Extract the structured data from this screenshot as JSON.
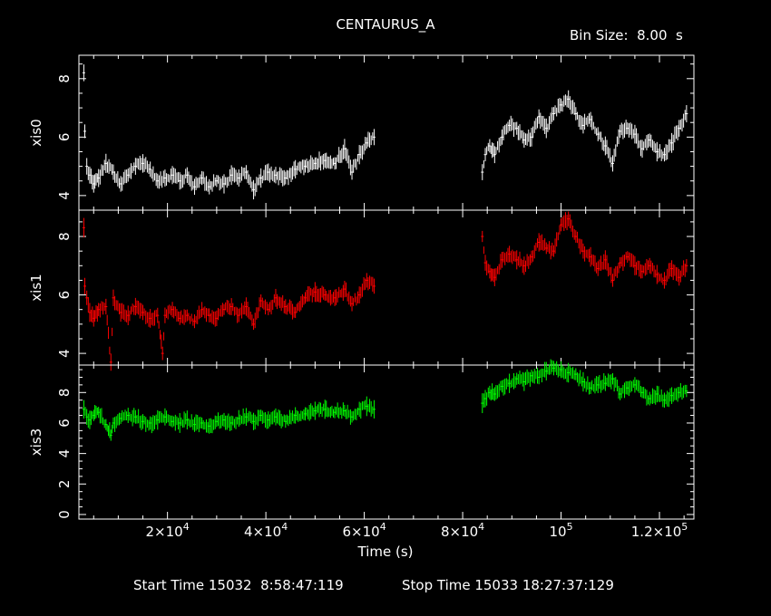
{
  "header": {
    "title": "CENTAURUS_A",
    "bin_size": "Bin Size:  8.00  s"
  },
  "footer": {
    "start_time": "Start Time 15032  8:58:47:119",
    "stop_time": "Stop Time 15033 18:27:37:129"
  },
  "colors": {
    "background": "#000000",
    "axes": "#ffffff",
    "xis0": "#ffffff",
    "xis1": "#ff0000",
    "xis3": "#00ff00"
  },
  "chart_data": {
    "type": "scatter",
    "title": "CENTAURUS_A",
    "xlabel": "Time (s)",
    "xlim": [
      2000,
      127000
    ],
    "x_ticks": [
      20000,
      40000,
      60000,
      80000,
      100000,
      120000
    ],
    "x_tick_labels": [
      {
        "mant": "2×10",
        "exp": "4"
      },
      {
        "mant": "4×10",
        "exp": "4"
      },
      {
        "mant": "6×10",
        "exp": "4"
      },
      {
        "mant": "8×10",
        "exp": "4"
      },
      {
        "mant": "10",
        "exp": "5"
      },
      {
        "mant": "1.2×10",
        "exp": "5"
      }
    ],
    "panels": [
      {
        "name": "xis0",
        "ylabel": "xis0",
        "ylim": [
          3.5,
          8.8
        ],
        "yticks": [
          4,
          6,
          8
        ],
        "ytick_labels": [
          "4",
          "6",
          "8"
        ],
        "color": "#ffffff",
        "points": [
          [
            3000,
            8.2
          ],
          [
            3200,
            6.2
          ],
          [
            3600,
            5.0
          ],
          [
            4200,
            4.7
          ],
          [
            5000,
            4.4
          ],
          [
            6000,
            4.6
          ],
          [
            7500,
            5.1
          ],
          [
            9000,
            4.8
          ],
          [
            10500,
            4.4
          ],
          [
            12000,
            4.7
          ],
          [
            13500,
            5.0
          ],
          [
            15000,
            5.1
          ],
          [
            16500,
            4.9
          ],
          [
            18000,
            4.5
          ],
          [
            19500,
            4.6
          ],
          [
            21000,
            4.7
          ],
          [
            22500,
            4.5
          ],
          [
            24000,
            4.7
          ],
          [
            25500,
            4.3
          ],
          [
            27000,
            4.6
          ],
          [
            28500,
            4.3
          ],
          [
            30000,
            4.5
          ],
          [
            31500,
            4.4
          ],
          [
            33000,
            4.7
          ],
          [
            34500,
            4.6
          ],
          [
            36000,
            4.8
          ],
          [
            37500,
            4.2
          ],
          [
            39000,
            4.6
          ],
          [
            40500,
            4.8
          ],
          [
            42000,
            4.7
          ],
          [
            44000,
            4.6
          ],
          [
            46000,
            4.9
          ],
          [
            48000,
            5.0
          ],
          [
            50000,
            5.1
          ],
          [
            52000,
            5.2
          ],
          [
            54000,
            5.1
          ],
          [
            56000,
            5.6
          ],
          [
            57500,
            4.8
          ],
          [
            59000,
            5.4
          ],
          [
            60500,
            5.8
          ],
          [
            62000,
            6.0
          ],
          [
            84000,
            4.8
          ],
          [
            84600,
            5.4
          ],
          [
            85500,
            5.7
          ],
          [
            86500,
            5.4
          ],
          [
            88000,
            6.0
          ],
          [
            89500,
            6.4
          ],
          [
            91000,
            6.3
          ],
          [
            92500,
            5.9
          ],
          [
            94000,
            6.0
          ],
          [
            95500,
            6.7
          ],
          [
            97000,
            6.3
          ],
          [
            98500,
            6.8
          ],
          [
            100000,
            7.1
          ],
          [
            101500,
            7.3
          ],
          [
            103000,
            6.8
          ],
          [
            104500,
            6.4
          ],
          [
            106000,
            6.6
          ],
          [
            107500,
            6.1
          ],
          [
            109000,
            5.7
          ],
          [
            110500,
            5.1
          ],
          [
            112000,
            6.2
          ],
          [
            113500,
            6.3
          ],
          [
            115000,
            6.1
          ],
          [
            116500,
            5.6
          ],
          [
            118000,
            5.9
          ],
          [
            119500,
            5.5
          ],
          [
            121000,
            5.4
          ],
          [
            122500,
            5.8
          ],
          [
            124000,
            6.3
          ],
          [
            125500,
            6.8
          ]
        ]
      },
      {
        "name": "xis1",
        "ylabel": "xis1",
        "ylim": [
          3.6,
          8.9
        ],
        "yticks": [
          4,
          6,
          8
        ],
        "ytick_labels": [
          "4",
          "6",
          "8"
        ],
        "color": "#ff0000",
        "points": [
          [
            3000,
            8.3
          ],
          [
            3200,
            6.3
          ],
          [
            3600,
            5.9
          ],
          [
            4200,
            5.4
          ],
          [
            5000,
            5.2
          ],
          [
            6000,
            5.5
          ],
          [
            7500,
            5.6
          ],
          [
            8500,
            3.7
          ],
          [
            9000,
            5.9
          ],
          [
            10500,
            5.4
          ],
          [
            12000,
            5.3
          ],
          [
            13500,
            5.6
          ],
          [
            15000,
            5.4
          ],
          [
            16500,
            5.2
          ],
          [
            18000,
            5.3
          ],
          [
            19000,
            4.0
          ],
          [
            19500,
            5.3
          ],
          [
            21000,
            5.5
          ],
          [
            22500,
            5.2
          ],
          [
            24000,
            5.3
          ],
          [
            25500,
            5.1
          ],
          [
            27000,
            5.5
          ],
          [
            28500,
            5.3
          ],
          [
            30000,
            5.2
          ],
          [
            31500,
            5.5
          ],
          [
            33000,
            5.6
          ],
          [
            34500,
            5.3
          ],
          [
            36000,
            5.6
          ],
          [
            37500,
            5.0
          ],
          [
            39000,
            5.8
          ],
          [
            40500,
            5.5
          ],
          [
            42000,
            5.9
          ],
          [
            44000,
            5.6
          ],
          [
            46000,
            5.4
          ],
          [
            48000,
            5.9
          ],
          [
            50000,
            6.1
          ],
          [
            52000,
            6.0
          ],
          [
            54000,
            5.9
          ],
          [
            56000,
            6.2
          ],
          [
            57500,
            5.7
          ],
          [
            59000,
            6.0
          ],
          [
            60500,
            6.5
          ],
          [
            62000,
            6.3
          ],
          [
            84000,
            8.0
          ],
          [
            84600,
            7.1
          ],
          [
            85500,
            6.8
          ],
          [
            86500,
            6.6
          ],
          [
            88000,
            7.2
          ],
          [
            89500,
            7.4
          ],
          [
            91000,
            7.2
          ],
          [
            92500,
            7.0
          ],
          [
            94000,
            7.3
          ],
          [
            95500,
            7.8
          ],
          [
            97000,
            7.6
          ],
          [
            98500,
            7.5
          ],
          [
            100000,
            8.4
          ],
          [
            101500,
            8.6
          ],
          [
            103000,
            8.0
          ],
          [
            104500,
            7.5
          ],
          [
            106000,
            7.3
          ],
          [
            107500,
            6.9
          ],
          [
            109000,
            7.2
          ],
          [
            110500,
            6.5
          ],
          [
            112000,
            7.1
          ],
          [
            113500,
            7.3
          ],
          [
            115000,
            7.0
          ],
          [
            116500,
            6.8
          ],
          [
            118000,
            7.0
          ],
          [
            119500,
            6.7
          ],
          [
            121000,
            6.5
          ],
          [
            122500,
            6.9
          ],
          [
            124000,
            6.6
          ],
          [
            125500,
            7.0
          ]
        ]
      },
      {
        "name": "xis3",
        "ylabel": "xis3",
        "ylim": [
          -0.3,
          9.8
        ],
        "yticks": [
          0,
          2,
          4,
          6,
          8
        ],
        "ytick_labels": [
          "0",
          "2",
          "4",
          "6",
          "8"
        ],
        "color": "#00ff00",
        "points": [
          [
            3000,
            6.9
          ],
          [
            3600,
            6.4
          ],
          [
            4200,
            6.2
          ],
          [
            5000,
            6.5
          ],
          [
            6000,
            6.7
          ],
          [
            7500,
            5.9
          ],
          [
            8500,
            5.2
          ],
          [
            9000,
            6.0
          ],
          [
            10500,
            6.3
          ],
          [
            12000,
            6.5
          ],
          [
            13500,
            6.4
          ],
          [
            15000,
            6.1
          ],
          [
            16500,
            6.0
          ],
          [
            18000,
            6.2
          ],
          [
            19500,
            6.4
          ],
          [
            21000,
            6.1
          ],
          [
            22500,
            6.0
          ],
          [
            24000,
            6.2
          ],
          [
            25500,
            5.9
          ],
          [
            27000,
            6.0
          ],
          [
            28500,
            5.8
          ],
          [
            30000,
            6.1
          ],
          [
            31500,
            6.2
          ],
          [
            33000,
            6.0
          ],
          [
            34500,
            6.3
          ],
          [
            36000,
            6.4
          ],
          [
            37500,
            6.1
          ],
          [
            39000,
            6.5
          ],
          [
            40500,
            6.2
          ],
          [
            42000,
            6.4
          ],
          [
            44000,
            6.1
          ],
          [
            46000,
            6.5
          ],
          [
            48000,
            6.6
          ],
          [
            50000,
            6.8
          ],
          [
            52000,
            6.9
          ],
          [
            54000,
            6.7
          ],
          [
            56000,
            6.8
          ],
          [
            57500,
            6.4
          ],
          [
            59000,
            6.9
          ],
          [
            60500,
            7.1
          ],
          [
            62000,
            6.9
          ],
          [
            84000,
            7.3
          ],
          [
            84600,
            7.6
          ],
          [
            85500,
            8.0
          ],
          [
            86500,
            7.9
          ],
          [
            88000,
            8.4
          ],
          [
            89500,
            8.6
          ],
          [
            91000,
            8.9
          ],
          [
            92500,
            8.7
          ],
          [
            94000,
            9.1
          ],
          [
            95500,
            9.0
          ],
          [
            97000,
            9.4
          ],
          [
            98500,
            9.6
          ],
          [
            100000,
            9.5
          ],
          [
            101500,
            9.3
          ],
          [
            103000,
            9.2
          ],
          [
            104500,
            8.7
          ],
          [
            106000,
            8.3
          ],
          [
            107500,
            8.5
          ],
          [
            109000,
            8.6
          ],
          [
            110500,
            8.9
          ],
          [
            112000,
            7.9
          ],
          [
            113500,
            8.3
          ],
          [
            115000,
            8.5
          ],
          [
            116500,
            8.0
          ],
          [
            118000,
            7.6
          ],
          [
            119500,
            7.9
          ],
          [
            121000,
            7.5
          ],
          [
            122500,
            7.8
          ],
          [
            124000,
            8.0
          ],
          [
            125500,
            8.1
          ]
        ]
      }
    ]
  }
}
